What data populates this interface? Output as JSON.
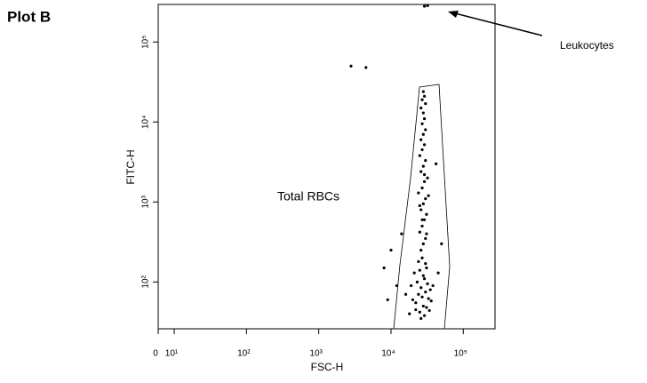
{
  "chart_data": {
    "type": "scatter",
    "title": "Plot B",
    "x_label": "FSC-H",
    "y_label": "FITC-H",
    "annotations": [
      "Leukocytes",
      "Total RBCs"
    ],
    "log_x": true,
    "log_y": true,
    "color": "#000000",
    "xlim": [
      6,
      275000
    ],
    "ylim": [
      26,
      295000
    ],
    "xticks": [
      {
        "value": 6,
        "label": "0"
      },
      {
        "value": 10,
        "label": "10¹"
      },
      {
        "value": 100,
        "label": "10²"
      },
      {
        "value": 1000,
        "label": "10³"
      },
      {
        "value": 10000,
        "label": "10⁴"
      },
      {
        "value": 100000,
        "label": "10⁵"
      }
    ],
    "yticks": [
      {
        "value": 100,
        "label": "10²"
      },
      {
        "value": 1000,
        "label": "10³"
      },
      {
        "value": 10000,
        "label": "10⁴"
      },
      {
        "value": 100000,
        "label": "10⁵"
      }
    ],
    "x": [
      18000,
      22000,
      25000,
      28000,
      31000,
      34000,
      20000,
      24000,
      27000,
      30000,
      33000,
      36000,
      19000,
      23000,
      26000,
      29000,
      32000,
      35000,
      21000,
      25000,
      28000,
      31000,
      16000,
      38000,
      24000,
      27000,
      30000,
      22000,
      26000,
      29000,
      26000,
      28000,
      30000,
      25000,
      27000,
      29000,
      31000,
      26000,
      28000,
      30000,
      24000,
      27000,
      29000,
      32000,
      26000,
      28000,
      30000,
      25000,
      27000,
      29000,
      26000,
      28000,
      30000,
      27000,
      29000,
      28000,
      26000,
      30000,
      27000,
      29000,
      28000,
      31000,
      25000,
      33000,
      27000,
      29000,
      8000,
      10000,
      12000,
      9000,
      14000,
      45000,
      50000,
      42000,
      2800,
      4500,
      29000,
      32000
    ],
    "values": [
      40,
      45,
      42,
      50,
      48,
      44,
      60,
      70,
      65,
      75,
      62,
      58,
      90,
      100,
      85,
      110,
      95,
      80,
      130,
      140,
      120,
      150,
      70,
      90,
      180,
      200,
      170,
      55,
      35,
      38,
      250,
      300,
      350,
      420,
      500,
      600,
      700,
      800,
      950,
      1100,
      1300,
      1500,
      1800,
      2000,
      2400,
      2800,
      3300,
      3800,
      4500,
      5200,
      6000,
      7000,
      8000,
      9500,
      11000,
      13000,
      15000,
      17000,
      19000,
      21000,
      24000,
      400,
      900,
      1200,
      600,
      2200,
      150,
      250,
      90,
      60,
      400,
      130,
      300,
      3000,
      50000,
      48000,
      280000,
      285000
    ]
  }
}
